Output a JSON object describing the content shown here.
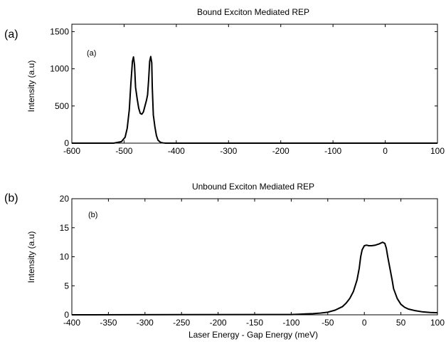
{
  "chart_data": [
    {
      "type": "line",
      "panel_label": "(a)",
      "inset_label": "(a)",
      "title": "Bound Exciton Mediated REP",
      "xlabel": "",
      "ylabel": "Intensity (a.u)",
      "xlim": [
        -600,
        100
      ],
      "ylim": [
        0,
        1600
      ],
      "xticks": [
        -600,
        -500,
        -400,
        -300,
        -200,
        -100,
        0,
        100
      ],
      "yticks": [
        0,
        500,
        1000,
        1500
      ],
      "grid": false,
      "series": [
        {
          "color": "#000000",
          "x": [
            -600,
            -520,
            -505,
            -498,
            -494,
            -490,
            -487,
            -484,
            -482,
            -480,
            -478,
            -475,
            -472,
            -469,
            -466,
            -463,
            -460,
            -457,
            -455,
            -453,
            -451,
            -449,
            -447,
            -446,
            -444,
            -441,
            -438,
            -435,
            -430,
            -425,
            -420,
            -410,
            100
          ],
          "y": [
            0,
            0,
            20,
            80,
            200,
            450,
            800,
            1100,
            1160,
            1050,
            750,
            600,
            470,
            400,
            390,
            420,
            500,
            580,
            650,
            850,
            1100,
            1165,
            1080,
            750,
            380,
            220,
            100,
            40,
            10,
            3,
            0,
            0,
            0
          ]
        }
      ]
    },
    {
      "type": "line",
      "panel_label": "(b)",
      "inset_label": "(b)",
      "title": "Unbound Exciton Mediated REP",
      "xlabel": "Laser Energy - Gap Energy (meV)",
      "ylabel": "Intensity (a.u)",
      "xlim": [
        -400,
        100
      ],
      "ylim": [
        0,
        20
      ],
      "xticks": [
        -400,
        -350,
        -300,
        -250,
        -200,
        -150,
        -100,
        -50,
        0,
        50,
        100
      ],
      "yticks": [
        0,
        5,
        10,
        15,
        20
      ],
      "grid": false,
      "series": [
        {
          "color": "#000000",
          "x": [
            -400,
            -100,
            -90,
            -80,
            -70,
            -60,
            -50,
            -40,
            -30,
            -25,
            -20,
            -15,
            -10,
            -7,
            -5,
            -3,
            0,
            3,
            6,
            10,
            15,
            20,
            25,
            28,
            30,
            32,
            35,
            38,
            40,
            45,
            50,
            55,
            60,
            70,
            80,
            90,
            100
          ],
          "y": [
            0,
            0.05,
            0.1,
            0.15,
            0.2,
            0.3,
            0.45,
            0.8,
            1.4,
            2.0,
            2.8,
            4.0,
            6.0,
            8.0,
            10.0,
            11.2,
            11.9,
            12.0,
            11.9,
            11.9,
            12.0,
            12.2,
            12.5,
            12.3,
            11.5,
            10.0,
            8.0,
            6.0,
            4.5,
            2.8,
            1.8,
            1.3,
            1.0,
            0.7,
            0.5,
            0.4,
            0.35
          ]
        }
      ]
    }
  ]
}
